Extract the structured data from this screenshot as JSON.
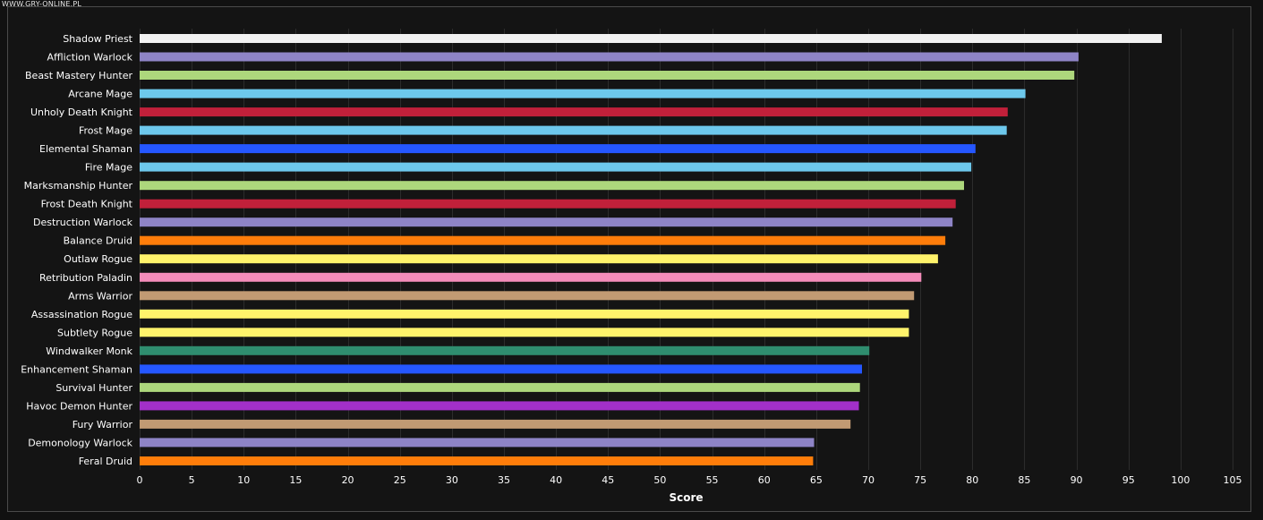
{
  "watermark": "WWW.GRY-ONLINE.PL",
  "chart_data": {
    "type": "bar",
    "orientation": "horizontal",
    "xlabel": "Score",
    "xlim": [
      0,
      105
    ],
    "xticks": [
      0,
      5,
      10,
      15,
      20,
      25,
      30,
      35,
      40,
      45,
      50,
      55,
      60,
      65,
      70,
      75,
      80,
      85,
      90,
      95,
      100,
      105
    ],
    "grid": true,
    "background": "#141414",
    "categories": [
      "Shadow Priest",
      "Affliction Warlock",
      "Beast Mastery Hunter",
      "Arcane Mage",
      "Unholy Death Knight",
      "Frost Mage",
      "Elemental Shaman",
      "Fire Mage",
      "Marksmanship Hunter",
      "Frost Death Knight",
      "Destruction Warlock",
      "Balance Druid",
      "Outlaw Rogue",
      "Retribution Paladin",
      "Arms Warrior",
      "Assassination Rogue",
      "Subtlety Rogue",
      "Windwalker Monk",
      "Enhancement Shaman",
      "Survival Hunter",
      "Havoc Demon Hunter",
      "Fury Warrior",
      "Demonology Warlock",
      "Feral Druid"
    ],
    "values": [
      98.2,
      90.2,
      89.8,
      85.1,
      83.4,
      83.3,
      80.3,
      79.9,
      79.2,
      78.4,
      78.1,
      77.4,
      76.7,
      75.1,
      74.4,
      73.9,
      73.9,
      70.1,
      69.4,
      69.2,
      69.1,
      68.3,
      64.8,
      64.7
    ],
    "colors": [
      "#f2f2f2",
      "#8e84c6",
      "#add77c",
      "#6dc8ec",
      "#c1203a",
      "#6dc8ec",
      "#2557ff",
      "#6dc8ec",
      "#add77c",
      "#c1203a",
      "#8e84c6",
      "#ff7d0a",
      "#fff36b",
      "#f48cba",
      "#c19a73",
      "#fff36b",
      "#fff36b",
      "#2f8d6f",
      "#2557ff",
      "#add77c",
      "#a230c9",
      "#c19a73",
      "#8e84c6",
      "#ff7d0a"
    ]
  }
}
